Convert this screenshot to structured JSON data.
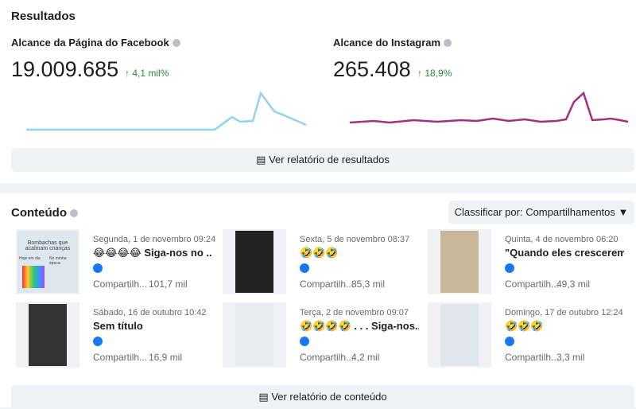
{
  "results": {
    "title": "Resultados",
    "metrics": [
      {
        "label": "Alcance da Página do Facebook",
        "value": "19.009.685",
        "change": "4,1 mil%"
      },
      {
        "label": "Alcance do Instagram",
        "value": "265.408",
        "change": "18,9%"
      }
    ],
    "button": "Ver relatório de resultados"
  },
  "content": {
    "title": "Conteúdo",
    "sort": "Classificar por: Compartilhamentos",
    "posts": [
      {
        "date": "Segunda, 1 de novembro 09:24",
        "text": "😂😂😂😂 Siga-nos no ...",
        "metric": "Compartilh...",
        "count": "101,7 mil",
        "thumb": [
          "Bombachas que acalmam crianças",
          "Hoje em dia",
          "No minha época"
        ]
      },
      {
        "date": "Sexta, 5 de novembro 08:37",
        "text": "🤣🤣🤣",
        "metric": "Compartilh...",
        "count": "85,3 mil"
      },
      {
        "date": "Quinta, 4 de novembro 06:20",
        "text": "\"Quando eles crescerem ...",
        "metric": "Compartilh...",
        "count": "49,3 mil"
      },
      {
        "date": "Sábado, 16 de outubro 10:42",
        "text": "Sem título",
        "metric": "Compartilh...",
        "count": "16,9 mil"
      },
      {
        "date": "Terça, 2 de novembro 09:07",
        "text": "🤣🤣🤣🤣 . . . Siga-nos...",
        "metric": "Compartilh...",
        "count": "4,2 mil"
      },
      {
        "date": "Domingo, 17 de outubro 12:24",
        "text": "🤣🤣🤣",
        "metric": "Compartilh...",
        "count": "3,3 mil"
      }
    ],
    "button": "Ver relatório de conteúdo"
  }
}
